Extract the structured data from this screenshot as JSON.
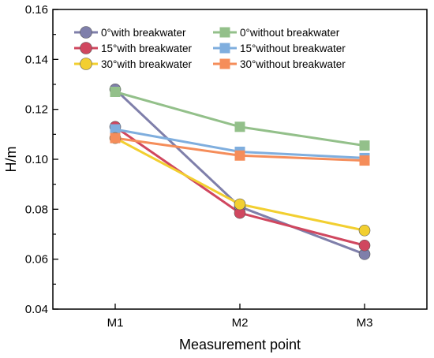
{
  "chart_data": {
    "type": "line",
    "title": "",
    "xlabel": "Measurement point",
    "ylabel": "H/m",
    "categories": [
      "M1",
      "M2",
      "M3"
    ],
    "ylim": [
      0.04,
      0.16
    ],
    "yticks": [
      0.04,
      0.06,
      0.08,
      0.1,
      0.12,
      0.14,
      0.16
    ],
    "ytick_labels": [
      "0.04",
      "0.06",
      "0.08",
      "0.10",
      "0.12",
      "0.14",
      "0.16"
    ],
    "grid": false,
    "legend_placement": "top",
    "series": [
      {
        "name": "0°with breakwater",
        "marker": "circle",
        "color": "#7F7FAA",
        "values": [
          0.128,
          0.081,
          0.062
        ]
      },
      {
        "name": "0°without breakwater",
        "marker": "square",
        "color": "#93C08A",
        "values": [
          0.127,
          0.113,
          0.1055
        ]
      },
      {
        "name": "15°with breakwater",
        "marker": "circle",
        "color": "#D0475F",
        "values": [
          0.113,
          0.0785,
          0.0655
        ]
      },
      {
        "name": "15°without breakwater",
        "marker": "square",
        "color": "#7FAEDE",
        "values": [
          0.112,
          0.103,
          0.1005
        ]
      },
      {
        "name": "30°with breakwater",
        "marker": "circle",
        "color": "#F2CF30",
        "values": [
          0.1085,
          0.082,
          0.0715
        ]
      },
      {
        "name": "30°without breakwater",
        "marker": "square",
        "color": "#F58D5A",
        "values": [
          0.1085,
          0.1015,
          0.0995
        ]
      }
    ]
  }
}
